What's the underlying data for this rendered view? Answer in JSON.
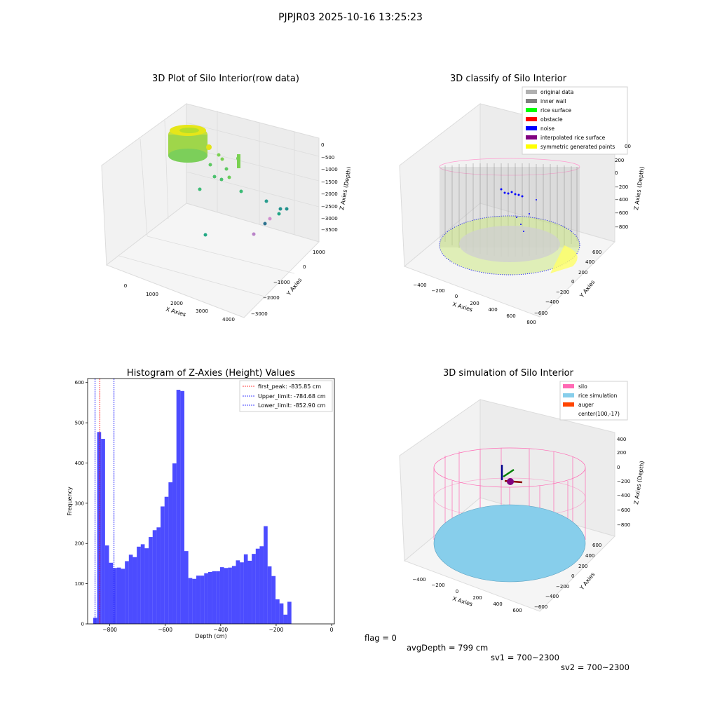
{
  "figure": {
    "suptitle": "PJPJR03 2025-10-16 13:25:23",
    "footer": {
      "flag": "flag = 0",
      "avg_depth": "avgDepth = 799 cm",
      "sv1": "sv1 = 700~2300",
      "sv2": "sv2 = 700~2300"
    }
  },
  "panels": {
    "raw": {
      "title": "3D Plot of Silo Interior(row data)",
      "xlabel": "X Axies",
      "ylabel": "Y Axies",
      "zlabel": "Z Axies (Depth)",
      "xticks": [
        "0",
        "1000",
        "2000",
        "3000",
        "4000"
      ],
      "yticks": [
        "1000",
        "0",
        "−1000",
        "−2000",
        "−3000"
      ],
      "zticks": [
        "0",
        "−500",
        "−1000",
        "−1500",
        "−2000",
        "−2500",
        "−3000",
        "−3500"
      ]
    },
    "classify": {
      "title": "3D classify of Silo Interior",
      "xlabel": "X Axies",
      "ylabel": "Y Axies",
      "zlabel": "Z Axies (Depth)",
      "xticks": [
        "−400",
        "−200",
        "0",
        "200",
        "400",
        "600",
        "800"
      ],
      "yticks": [
        "600",
        "400",
        "200",
        "0",
        "−200",
        "−400",
        "−600"
      ],
      "zticks": [
        "200",
        "0",
        "−200",
        "−400",
        "−600",
        "−800"
      ],
      "zticks_partial": "00",
      "legend": [
        {
          "label": "original data",
          "color": "#b0b0b0"
        },
        {
          "label": "inner wall",
          "color": "#808080"
        },
        {
          "label": "rice surface",
          "color": "#00ff00"
        },
        {
          "label": "obstacle",
          "color": "#ff0000"
        },
        {
          "label": "noise",
          "color": "#0000ff"
        },
        {
          "label": "interpolated rice surface",
          "color": "#800080"
        },
        {
          "label": "symmetric generated points",
          "color": "#ffff00"
        }
      ]
    },
    "simulation": {
      "title": "3D simulation of Silo Interior",
      "xlabel": "X Axies",
      "ylabel": "Y Axies",
      "zlabel": "Z Axies (Depth)",
      "xticks": [
        "−400",
        "−200",
        "0",
        "200",
        "400",
        "600"
      ],
      "yticks": [
        "600",
        "400",
        "200",
        "0",
        "−200",
        "−400",
        "−600"
      ],
      "zticks": [
        "400",
        "200",
        "0",
        "−200",
        "−400",
        "−600",
        "−800"
      ],
      "legend": [
        {
          "label": "silo",
          "color": "#ff69b4"
        },
        {
          "label": "rice simulation",
          "color": "#87ceeb"
        },
        {
          "label": "auger",
          "color": "#ff4500"
        },
        {
          "label": "center(100,-17)",
          "color": ""
        }
      ]
    }
  },
  "chart_data": [
    {
      "type": "bar",
      "title": "Histogram of Z-Axies (Height) Values",
      "xlabel": "Depth (cm)",
      "ylabel": "Frequency",
      "xlim": [
        -880,
        10
      ],
      "ylim": [
        0,
        610
      ],
      "xticks": [
        -800,
        -600,
        -400,
        -200,
        0
      ],
      "yticks": [
        0,
        100,
        200,
        300,
        400,
        500,
        600
      ],
      "bar_color": "#0000ff",
      "bin_start": -860,
      "bin_width": 14.3,
      "values": [
        15,
        477,
        460,
        195,
        152,
        139,
        140,
        137,
        156,
        172,
        166,
        192,
        198,
        188,
        216,
        233,
        240,
        292,
        316,
        352,
        399,
        582,
        579,
        181,
        114,
        112,
        120,
        120,
        126,
        129,
        131,
        131,
        141,
        139,
        140,
        144,
        158,
        153,
        173,
        157,
        174,
        187,
        193,
        243,
        143,
        119,
        61,
        51,
        23,
        55
      ],
      "lines": [
        {
          "label": "first_peak: -835.85 cm",
          "x": -835.85,
          "color": "#ff0000"
        },
        {
          "label": "Upper_limit: -784.68 cm",
          "x": -784.68,
          "color": "#0000ff"
        },
        {
          "label": "Lower_limit: -852.90 cm",
          "x": -852.9,
          "color": "#0000ff"
        }
      ]
    }
  ]
}
